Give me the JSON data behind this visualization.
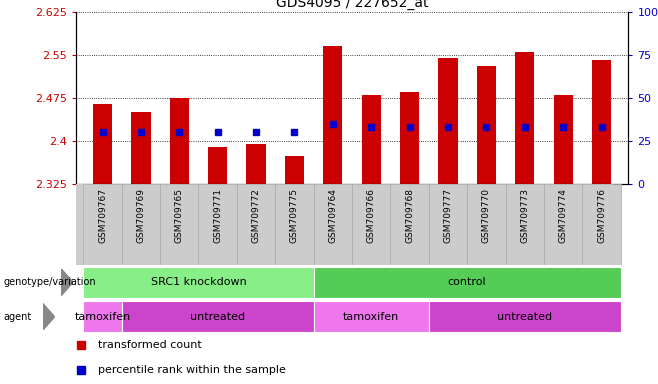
{
  "title": "GDS4095 / 227652_at",
  "samples": [
    "GSM709767",
    "GSM709769",
    "GSM709765",
    "GSM709771",
    "GSM709772",
    "GSM709775",
    "GSM709764",
    "GSM709766",
    "GSM709768",
    "GSM709777",
    "GSM709770",
    "GSM709773",
    "GSM709774",
    "GSM709776"
  ],
  "bar_values": [
    2.465,
    2.45,
    2.475,
    2.39,
    2.395,
    2.375,
    2.565,
    2.48,
    2.485,
    2.545,
    2.53,
    2.555,
    2.48,
    2.54
  ],
  "percentile_values": [
    2.415,
    2.415,
    2.415,
    2.415,
    2.415,
    2.415,
    2.43,
    2.425,
    2.425,
    2.425,
    2.425,
    2.425,
    2.425,
    2.425
  ],
  "y_min": 2.325,
  "y_max": 2.625,
  "y_ticks": [
    2.325,
    2.4,
    2.475,
    2.55,
    2.625
  ],
  "right_y_ticks": [
    0,
    25,
    50,
    75,
    100
  ],
  "bar_color": "#cc0000",
  "dot_color": "#0000cc",
  "background_color": "#ffffff",
  "genotype_groups": [
    {
      "label": "SRC1 knockdown",
      "start": 0,
      "end": 6,
      "color": "#88ee88"
    },
    {
      "label": "control",
      "start": 6,
      "end": 14,
      "color": "#55cc55"
    }
  ],
  "agent_groups": [
    {
      "label": "tamoxifen",
      "start": 0,
      "end": 1,
      "color": "#ee77ee"
    },
    {
      "label": "untreated",
      "start": 1,
      "end": 6,
      "color": "#cc44cc"
    },
    {
      "label": "tamoxifen",
      "start": 6,
      "end": 9,
      "color": "#ee77ee"
    },
    {
      "label": "untreated",
      "start": 9,
      "end": 14,
      "color": "#cc44cc"
    }
  ],
  "legend_items": [
    {
      "label": "transformed count",
      "color": "#cc0000"
    },
    {
      "label": "percentile rank within the sample",
      "color": "#0000cc"
    }
  ],
  "label_bg": "#cccccc"
}
